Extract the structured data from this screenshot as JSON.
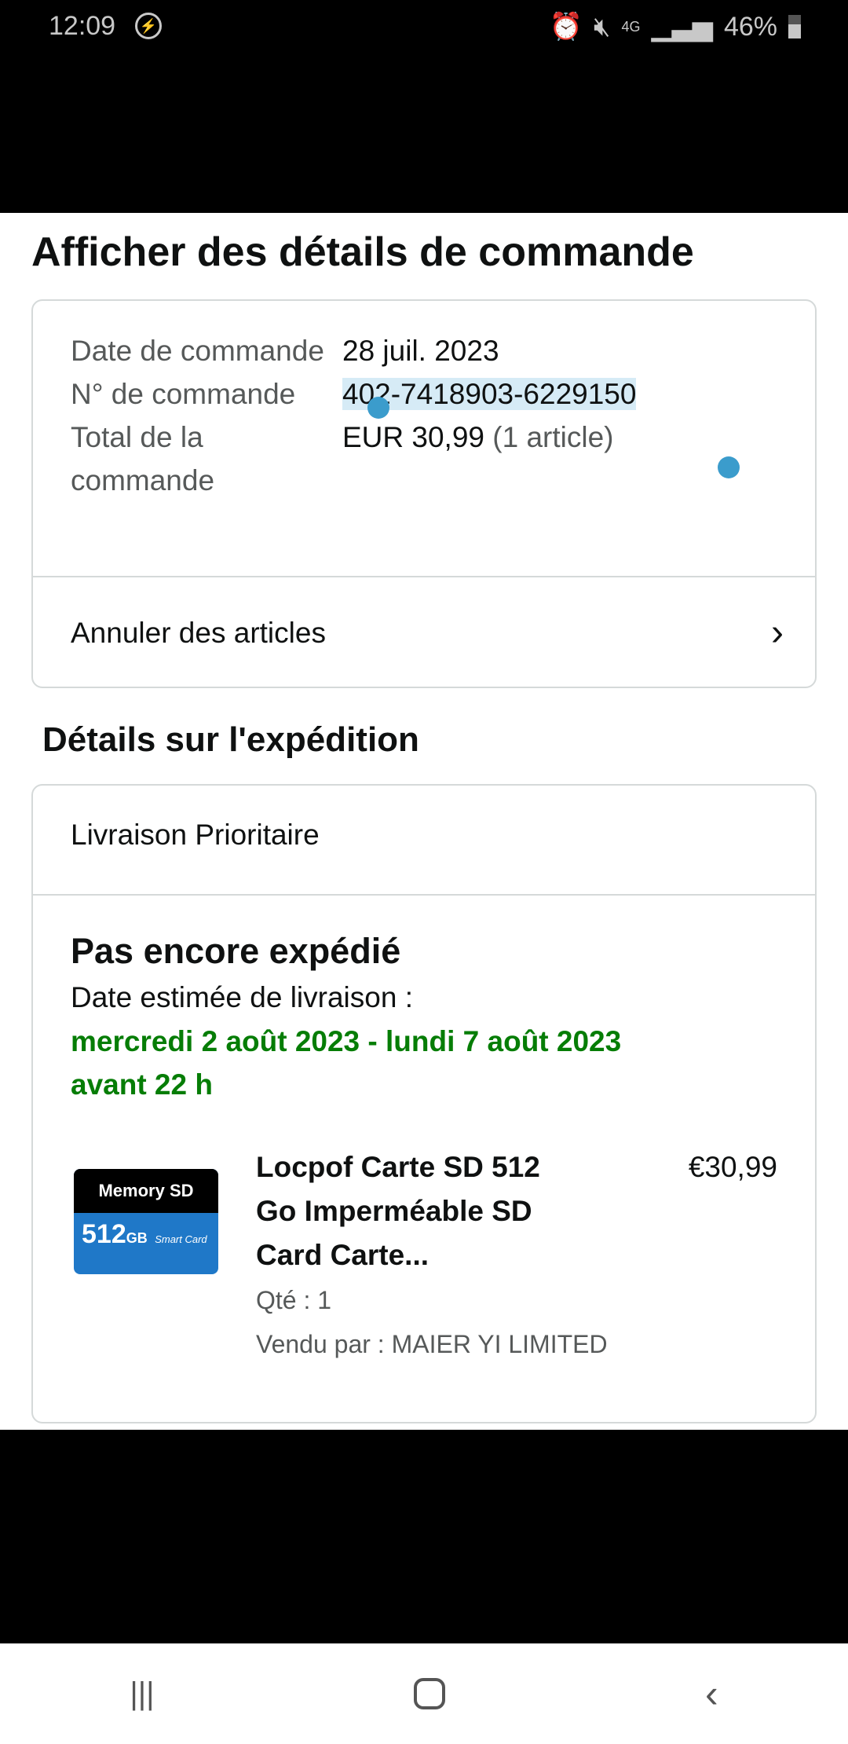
{
  "status_bar": {
    "time": "12:09",
    "battery": "46%",
    "network": "4G"
  },
  "title": "Afficher des détails de commande",
  "order": {
    "date_label": "Date de commande",
    "date": "28 juil. 2023",
    "number_label": "N° de commande",
    "number": "402-7418903-6229150",
    "total_label": "Total de la commande",
    "total": "EUR 30,99",
    "total_items": "(1 article)",
    "cancel_label": "Annuler des articles"
  },
  "shipping": {
    "heading": "Détails sur l'expédition",
    "method": "Livraison Prioritaire",
    "status": "Pas encore expédié",
    "estimate_label": "Date estimée de livraison :",
    "estimate_line1": "mercredi 2 août 2023 - lundi 7 août 2023",
    "estimate_line2": "avant 22 h",
    "item": {
      "title_line1": "Locpof Carte SD 512",
      "title_line2": "Go Imperméable SD",
      "title_line3": "Card Carte...",
      "price": "€30,99",
      "qty": "Qté : 1",
      "seller": "Vendu par : MAIER YI LIMITED",
      "image_text1": "Memory SD",
      "image_text2": "512",
      "image_text3": "GB",
      "image_text4": "Smart Card"
    }
  },
  "colors": {
    "accent_green": "#067d06",
    "selection": "#d6ebf6",
    "handle": "#3b9ccc"
  }
}
